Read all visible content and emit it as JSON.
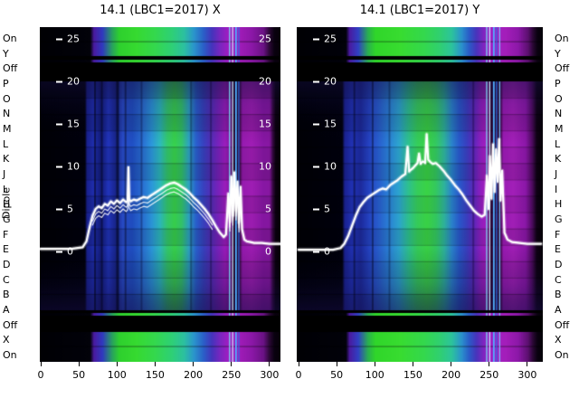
{
  "figure": {
    "background": "#ffffff",
    "left_axis_title": "Dipole",
    "row_labels": [
      "On",
      "Y",
      "Off",
      "P",
      "O",
      "N",
      "M",
      "L",
      "K",
      "J",
      "I",
      "H",
      "G",
      "F",
      "E",
      "D",
      "C",
      "B",
      "A",
      "Off",
      "X",
      "On"
    ],
    "x_ticks": [
      0,
      50,
      100,
      150,
      200,
      250,
      300
    ],
    "inner_y_ticks": [
      25,
      20,
      15,
      10,
      5,
      0
    ]
  },
  "chart_data": [
    {
      "type": "heatmap",
      "title": "14.1 (LBC1=2017) X",
      "xlim": [
        0,
        320
      ],
      "x_ticks": [
        0,
        50,
        100,
        150,
        200,
        250,
        300
      ],
      "overlay_line_y_ticks": [
        0,
        5,
        10,
        15,
        20,
        25
      ],
      "right_ticks": true,
      "line_color": "#ffffff",
      "main_gradient": [
        [
          0,
          "#000006"
        ],
        [
          0.188,
          "#02020e"
        ],
        [
          0.196,
          "#1a2294"
        ],
        [
          0.225,
          "#2030b4"
        ],
        [
          0.255,
          "#141d7e"
        ],
        [
          0.285,
          "#2336c2"
        ],
        [
          0.315,
          "#1a2792"
        ],
        [
          0.345,
          "#2a4ecf"
        ],
        [
          0.385,
          "#2152ca"
        ],
        [
          0.425,
          "#2b70da"
        ],
        [
          0.465,
          "#2d9ce2"
        ],
        [
          0.5,
          "#2fc0c2"
        ],
        [
          0.53,
          "#36d072"
        ],
        [
          0.56,
          "#3ad84e"
        ],
        [
          0.59,
          "#35cc70"
        ],
        [
          0.62,
          "#2fa8ca"
        ],
        [
          0.65,
          "#2b62d6"
        ],
        [
          0.68,
          "#3a44c6"
        ],
        [
          0.71,
          "#5430be"
        ],
        [
          0.74,
          "#7b24c2"
        ],
        [
          0.77,
          "#a01ec2"
        ],
        [
          0.792,
          "#8818aa"
        ],
        [
          0.803,
          "#2a0832"
        ],
        [
          0.828,
          "#2a0832"
        ],
        [
          0.842,
          "#9c1cb6"
        ],
        [
          0.88,
          "#a51fba"
        ],
        [
          0.93,
          "#8c18aa"
        ],
        [
          0.955,
          "#8c18a8"
        ],
        [
          0.968,
          "#3a0a46"
        ],
        [
          0.98,
          "#0c0210"
        ],
        [
          1,
          "#060108"
        ]
      ],
      "strip_gradient": [
        [
          0,
          "#000004"
        ],
        [
          0.21,
          "#02020a"
        ],
        [
          0.225,
          "#4a1aa0"
        ],
        [
          0.26,
          "#3038c0"
        ],
        [
          0.3,
          "#28a060"
        ],
        [
          0.33,
          "#2ed02e"
        ],
        [
          0.4,
          "#36da30"
        ],
        [
          0.48,
          "#34d84e"
        ],
        [
          0.55,
          "#2ed077"
        ],
        [
          0.6,
          "#2cc0a0"
        ],
        [
          0.64,
          "#2a96cc"
        ],
        [
          0.68,
          "#2a60c8"
        ],
        [
          0.715,
          "#4434bc"
        ],
        [
          0.75,
          "#7a26c0"
        ],
        [
          0.78,
          "#9c1ec2"
        ],
        [
          0.83,
          "#a01cb8"
        ],
        [
          0.88,
          "#8c18a8"
        ],
        [
          0.93,
          "#6a1284"
        ],
        [
          0.955,
          "#2a0834"
        ],
        [
          0.975,
          "#0a0210"
        ],
        [
          1,
          "#060108"
        ]
      ],
      "vertical_tint": [
        [
          0,
          "rgba(28,20,90,0.42)"
        ],
        [
          0.1,
          "rgba(20,16,70,0.18)"
        ],
        [
          0.28,
          "rgba(0,0,0,0)"
        ],
        [
          0.72,
          "rgba(0,0,0,0)"
        ],
        [
          0.88,
          "rgba(16,12,60,0.22)"
        ],
        [
          1,
          "rgba(26,16,85,0.5)"
        ]
      ],
      "row_alphas": [
        0.2,
        0.05,
        0.12,
        0.02,
        0.1,
        0.16,
        0.03,
        0.12,
        0.05,
        0.15,
        0.04,
        0.1,
        0.06,
        0.16
      ],
      "stripes": [
        {
          "x": 70,
          "w": 2,
          "color": "rgba(0,0,15,0.5)",
          "span": "main"
        },
        {
          "x": 79,
          "w": 2,
          "color": "rgba(0,0,15,0.4)",
          "span": "main"
        },
        {
          "x": 99,
          "w": 3,
          "color": "rgba(0,0,15,0.55)",
          "span": "main"
        },
        {
          "x": 110,
          "w": 2,
          "color": "rgba(0,0,15,0.4)",
          "span": "main"
        },
        {
          "x": 131,
          "w": 2,
          "color": "rgba(0,0,25,0.3)",
          "span": "main"
        },
        {
          "x": 196,
          "w": 2,
          "color": "rgba(0,0,25,0.3)",
          "span": "main"
        },
        {
          "x": 222,
          "w": 2,
          "color": "rgba(10,0,25,0.3)",
          "span": "main"
        },
        {
          "x": 247,
          "w": 1.2,
          "color": "#79e8f8",
          "span": "all"
        },
        {
          "x": 251,
          "w": 1.2,
          "color": "#cfefff",
          "span": "all"
        },
        {
          "x": 255,
          "w": 1.8,
          "color": "#4fb0ff",
          "span": "all"
        },
        {
          "x": 259,
          "w": 1.2,
          "color": "#2f6fe8",
          "span": "all"
        }
      ],
      "sub_strands": [
        0.6,
        1.1
      ],
      "line": {
        "x": [
          0,
          40,
          55,
          60,
          64,
          68,
          72,
          76,
          80,
          84,
          88,
          92,
          96,
          100,
          104,
          108,
          112,
          114,
          115,
          116,
          118,
          122,
          126,
          130,
          135,
          140,
          145,
          150,
          155,
          160,
          165,
          170,
          175,
          180,
          185,
          190,
          195,
          200,
          205,
          210,
          215,
          220,
          225,
          230,
          235,
          240,
          243,
          246,
          248,
          250,
          252,
          254,
          256,
          258,
          260,
          262,
          264,
          267,
          270,
          275,
          280,
          290,
          300,
          310,
          318
        ],
        "y": [
          0.3,
          0.3,
          0.5,
          1.2,
          2.8,
          4.2,
          5.0,
          5.3,
          5.1,
          5.6,
          5.4,
          5.9,
          5.6,
          6.0,
          5.7,
          6.1,
          5.8,
          6.0,
          9.9,
          6.2,
          5.9,
          6.1,
          6.0,
          6.2,
          6.4,
          6.3,
          6.6,
          6.9,
          7.2,
          7.5,
          7.8,
          8.0,
          8.1,
          7.9,
          7.6,
          7.3,
          6.9,
          6.4,
          6.0,
          5.5,
          5.0,
          4.4,
          3.7,
          2.9,
          2.2,
          1.7,
          2.0,
          6.8,
          3.5,
          8.8,
          4.2,
          9.3,
          4.8,
          8.2,
          3.4,
          7.6,
          2.6,
          1.4,
          1.2,
          1.1,
          1.0,
          1.0,
          0.9,
          0.9,
          0.9
        ]
      }
    },
    {
      "type": "heatmap",
      "title": "14.1 (LBC1=2017) Y",
      "xlim": [
        0,
        320
      ],
      "x_ticks": [
        0,
        50,
        100,
        150,
        200,
        250,
        300
      ],
      "overlay_line_y_ticks": [
        0,
        5,
        10,
        15,
        20,
        25
      ],
      "right_ticks": false,
      "line_color": "#ffffff",
      "main_gradient": [
        [
          0,
          "#000006"
        ],
        [
          0.185,
          "#02020e"
        ],
        [
          0.195,
          "#1c2498"
        ],
        [
          0.225,
          "#2233ba"
        ],
        [
          0.26,
          "#1e2ca2"
        ],
        [
          0.295,
          "#2646ca"
        ],
        [
          0.335,
          "#2a64d6"
        ],
        [
          0.375,
          "#2c86de"
        ],
        [
          0.415,
          "#2eaad6"
        ],
        [
          0.455,
          "#30c892"
        ],
        [
          0.49,
          "#38d45e"
        ],
        [
          0.53,
          "#3cda48"
        ],
        [
          0.565,
          "#36d062"
        ],
        [
          0.6,
          "#30b8a2"
        ],
        [
          0.63,
          "#2c88d2"
        ],
        [
          0.66,
          "#2a5cd2"
        ],
        [
          0.69,
          "#3c42c6"
        ],
        [
          0.72,
          "#6028c2"
        ],
        [
          0.75,
          "#9820c6"
        ],
        [
          0.772,
          "#a81ec2"
        ],
        [
          0.787,
          "#30083a"
        ],
        [
          0.825,
          "#30083a"
        ],
        [
          0.84,
          "#a01cba"
        ],
        [
          0.88,
          "#a821be"
        ],
        [
          0.93,
          "#9018ae"
        ],
        [
          0.957,
          "#500c62"
        ],
        [
          0.975,
          "#100316"
        ],
        [
          1,
          "#08020a"
        ]
      ],
      "strip_gradient": [
        [
          0,
          "#000004"
        ],
        [
          0.2,
          "#02020a"
        ],
        [
          0.215,
          "#4a1aa0"
        ],
        [
          0.25,
          "#3040c4"
        ],
        [
          0.29,
          "#2ab050"
        ],
        [
          0.32,
          "#30d62a"
        ],
        [
          0.42,
          "#38dc30"
        ],
        [
          0.52,
          "#34d84e"
        ],
        [
          0.58,
          "#30d070"
        ],
        [
          0.63,
          "#2cc49c"
        ],
        [
          0.67,
          "#2a92cc"
        ],
        [
          0.7,
          "#2a5cc8"
        ],
        [
          0.73,
          "#4834bc"
        ],
        [
          0.76,
          "#8024c0"
        ],
        [
          0.79,
          "#a01ec4"
        ],
        [
          0.85,
          "#a41eba"
        ],
        [
          0.9,
          "#8c18a8"
        ],
        [
          0.94,
          "#5c1070"
        ],
        [
          0.96,
          "#2a0834"
        ],
        [
          0.978,
          "#0a0210"
        ],
        [
          1,
          "#060108"
        ]
      ],
      "vertical_tint": [
        [
          0,
          "rgba(28,20,90,0.42)"
        ],
        [
          0.1,
          "rgba(20,16,70,0.18)"
        ],
        [
          0.28,
          "rgba(0,0,0,0)"
        ],
        [
          0.72,
          "rgba(0,0,0,0)"
        ],
        [
          0.88,
          "rgba(16,12,60,0.22)"
        ],
        [
          1,
          "rgba(26,16,85,0.5)"
        ]
      ],
      "row_alphas": [
        0.18,
        0.04,
        0.1,
        0.02,
        0.08,
        0.14,
        0.03,
        0.1,
        0.04,
        0.13,
        0.04,
        0.09,
        0.05,
        0.15
      ],
      "stripes": [
        {
          "x": 72,
          "w": 2,
          "color": "rgba(0,0,15,0.4)",
          "span": "main"
        },
        {
          "x": 96,
          "w": 2,
          "color": "rgba(0,0,15,0.4)",
          "span": "main"
        },
        {
          "x": 118,
          "w": 2,
          "color": "rgba(0,0,25,0.3)",
          "span": "main"
        },
        {
          "x": 228,
          "w": 2,
          "color": "rgba(10,0,25,0.3)",
          "span": "main"
        },
        {
          "x": 246,
          "w": 1.2,
          "color": "#79e8f8",
          "span": "all"
        },
        {
          "x": 250,
          "w": 1.2,
          "color": "#cfefff",
          "span": "all"
        },
        {
          "x": 255,
          "w": 1.8,
          "color": "#4fb0ff",
          "span": "all"
        },
        {
          "x": 259,
          "w": 1.2,
          "color": "#2f6fe8",
          "span": "all"
        },
        {
          "x": 263,
          "w": 1.2,
          "color": "#79c8ff",
          "span": "all"
        }
      ],
      "sub_strands": [],
      "line": {
        "x": [
          0,
          45,
          55,
          60,
          65,
          70,
          75,
          80,
          85,
          90,
          95,
          100,
          105,
          110,
          115,
          120,
          125,
          130,
          135,
          140,
          143,
          145,
          147,
          150,
          153,
          156,
          158,
          160,
          163,
          166,
          168,
          170,
          173,
          176,
          180,
          185,
          190,
          195,
          200,
          205,
          210,
          215,
          220,
          225,
          230,
          235,
          240,
          244,
          247,
          249,
          251,
          253,
          255,
          257,
          259,
          261,
          263,
          265,
          267,
          270,
          274,
          280,
          290,
          300,
          310,
          318
        ],
        "y": [
          0.2,
          0.2,
          0.4,
          0.9,
          1.8,
          3.0,
          4.2,
          5.2,
          5.8,
          6.3,
          6.6,
          6.9,
          7.2,
          7.4,
          7.3,
          7.8,
          8.1,
          8.4,
          8.8,
          9.1,
          12.3,
          9.4,
          9.6,
          9.8,
          10.1,
          10.4,
          11.5,
          10.3,
          10.6,
          10.4,
          13.8,
          10.8,
          10.5,
          10.3,
          10.4,
          10.0,
          9.5,
          8.9,
          8.4,
          7.8,
          7.3,
          6.7,
          6.0,
          5.4,
          4.8,
          4.4,
          4.1,
          4.3,
          8.9,
          5.0,
          11.2,
          6.2,
          12.6,
          7.0,
          12.0,
          8.2,
          13.2,
          6.0,
          9.5,
          2.2,
          1.4,
          1.1,
          1.0,
          0.9,
          0.9,
          0.9
        ]
      }
    }
  ]
}
